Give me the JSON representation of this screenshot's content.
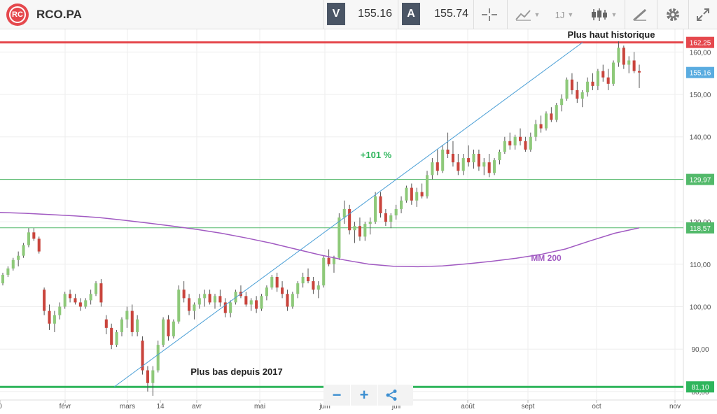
{
  "header": {
    "logo_text": "RC",
    "symbol": "RCO.PA",
    "sell_label": "V",
    "sell_value": "155.16",
    "buy_label": "A",
    "buy_value": "155.74",
    "interval_label": "1J",
    "icons": [
      "crosshair-icon",
      "indicator-icon",
      "candlestick-icon",
      "drawing-tools-icon",
      "gear-icon",
      "fullscreen-icon"
    ]
  },
  "colors": {
    "bull": "#8ec97a",
    "bear": "#c9443c",
    "trend": "#4a9fd6",
    "ma": "#a15ac2",
    "support": "#2fb55c",
    "hline_thin": "#52b96a",
    "ath": "#e5484d",
    "price_tag": "#5aace0"
  },
  "chart_data": {
    "type": "candlestick",
    "y_ticks": [
      "80,00",
      "90,00",
      "100,00",
      "110,00",
      "120,00",
      "130,00",
      "140,00",
      "150,00",
      "160,00"
    ],
    "x_ticks": [
      "0",
      "févr",
      "mars",
      "14",
      "avr",
      "mai",
      "juin",
      "juil",
      "août",
      "sept",
      "oct",
      "nov"
    ],
    "y_range": [
      78.5,
      164.5
    ],
    "grid": true,
    "levels": [
      {
        "name": "ath",
        "value": 162.25,
        "label": "162,25"
      },
      {
        "name": "last",
        "value": 155.16,
        "label": "155,16"
      },
      {
        "name": "resistance",
        "value": 129.97,
        "label": "129,97"
      },
      {
        "name": "ma-cross",
        "value": 118.57,
        "label": "118,57"
      },
      {
        "name": "support",
        "value": 81.1,
        "label": "81,10"
      }
    ],
    "annotations": {
      "ath": "Plus haut historique",
      "low": "Plus bas depuis 2017",
      "gain": "+101 %",
      "ma": "MM 200"
    },
    "ma200": [
      [
        0,
        122.2
      ],
      [
        1,
        122
      ],
      [
        2,
        121.7
      ],
      [
        3,
        121.4
      ],
      [
        4,
        121
      ],
      [
        5,
        120.4
      ],
      [
        6,
        119.7
      ],
      [
        7,
        119
      ],
      [
        8,
        118.2
      ],
      [
        9,
        117.3
      ],
      [
        10,
        116.2
      ],
      [
        11,
        115
      ],
      [
        12,
        113.6
      ],
      [
        13,
        112.2
      ],
      [
        14,
        111
      ],
      [
        15,
        110
      ],
      [
        16,
        109.5
      ],
      [
        17,
        109.4
      ],
      [
        18,
        109.6
      ],
      [
        19,
        110.1
      ],
      [
        20,
        110.7
      ],
      [
        21,
        111.4
      ],
      [
        22,
        112.3
      ],
      [
        23,
        113.6
      ],
      [
        24,
        115.5
      ],
      [
        25,
        117.3
      ],
      [
        26,
        118.57
      ]
    ],
    "trendline": [
      [
        2,
        81.1
      ],
      [
        22.5,
        162.25
      ]
    ],
    "candles": [
      [
        105.5,
        108,
        105,
        107.5
      ],
      [
        107.5,
        109.5,
        107,
        109
      ],
      [
        109,
        111.5,
        108.5,
        111
      ],
      [
        111,
        113,
        109.5,
        112
      ],
      [
        112,
        115,
        111.5,
        114.5
      ],
      [
        114.5,
        118.5,
        114,
        117.5
      ],
      [
        117.5,
        118.5,
        115.5,
        116
      ],
      [
        116,
        116.5,
        112.5,
        113
      ],
      [
        104,
        104.5,
        98,
        99
      ],
      [
        99,
        100.5,
        94.5,
        96
      ],
      [
        96,
        99,
        94,
        98
      ],
      [
        98,
        101,
        97,
        100
      ],
      [
        100,
        103.5,
        99.5,
        103
      ],
      [
        103,
        104,
        101,
        102
      ],
      [
        102,
        103,
        100.5,
        101
      ],
      [
        101,
        102,
        99,
        100
      ],
      [
        100,
        102,
        99.5,
        101.5
      ],
      [
        101.5,
        104,
        100.5,
        103
      ],
      [
        103,
        106,
        102.5,
        105.5
      ],
      [
        105.5,
        106.5,
        100,
        101
      ],
      [
        97,
        98,
        93.5,
        95
      ],
      [
        95,
        96,
        90,
        91
      ],
      [
        91,
        94.5,
        90.5,
        94
      ],
      [
        94,
        97.5,
        93,
        97
      ],
      [
        97,
        100,
        95,
        99
      ],
      [
        99,
        100.5,
        93,
        94
      ],
      [
        94,
        98,
        93,
        97
      ],
      [
        92,
        93,
        84,
        85
      ],
      [
        85,
        86,
        80,
        82
      ],
      [
        82,
        86,
        79,
        85
      ],
      [
        85,
        92,
        84.5,
        91
      ],
      [
        91,
        97.5,
        90.5,
        97
      ],
      [
        97,
        98,
        92,
        93
      ],
      [
        93,
        97,
        92.5,
        96.5
      ],
      [
        96.5,
        105,
        96,
        104
      ],
      [
        104,
        106,
        101,
        102
      ],
      [
        102,
        103,
        98,
        99
      ],
      [
        99,
        101,
        97,
        100.5
      ],
      [
        100.5,
        103,
        99.5,
        102
      ],
      [
        102,
        104,
        100,
        103
      ],
      [
        103,
        104,
        100.5,
        101
      ],
      [
        101,
        103,
        99.5,
        102.5
      ],
      [
        102.5,
        104,
        100,
        101
      ],
      [
        101,
        102,
        97.5,
        98.5
      ],
      [
        98.5,
        101.5,
        97.5,
        101
      ],
      [
        101,
        104,
        100.5,
        103.5
      ],
      [
        103.5,
        105,
        102,
        102.5
      ],
      [
        102.5,
        103.5,
        100,
        100.5
      ],
      [
        100.5,
        102,
        99,
        101.5
      ],
      [
        101.5,
        102.5,
        98.5,
        99.5
      ],
      [
        99.5,
        103,
        99,
        102.5
      ],
      [
        102.5,
        105,
        101.5,
        104.5
      ],
      [
        104.5,
        107.5,
        104,
        107
      ],
      [
        107,
        108,
        103.5,
        104.5
      ],
      [
        104.5,
        106,
        102,
        103
      ],
      [
        103,
        104,
        99,
        100
      ],
      [
        100,
        103.5,
        99.5,
        103
      ],
      [
        103,
        106,
        102,
        105.5
      ],
      [
        105.5,
        108,
        104.5,
        107
      ],
      [
        107,
        109,
        105.5,
        106
      ],
      [
        106,
        107,
        103,
        104
      ],
      [
        104,
        106,
        102,
        105
      ],
      [
        105,
        112,
        104.5,
        111.5
      ],
      [
        111.5,
        113.5,
        109.5,
        110
      ],
      [
        110,
        112,
        108,
        111.5
      ],
      [
        111.5,
        122,
        111,
        121
      ],
      [
        121,
        125,
        119.5,
        123
      ],
      [
        123,
        124,
        117,
        118
      ],
      [
        118,
        120,
        115,
        119
      ],
      [
        119,
        121,
        115.5,
        116.5
      ],
      [
        116.5,
        120,
        115.5,
        119.5
      ],
      [
        119.5,
        121,
        117,
        120
      ],
      [
        120,
        127,
        119.5,
        126
      ],
      [
        126,
        127,
        121,
        122
      ],
      [
        122,
        123,
        119,
        120
      ],
      [
        120,
        122,
        118.5,
        121.5
      ],
      [
        121.5,
        124,
        120.5,
        123
      ],
      [
        123,
        126,
        122,
        125
      ],
      [
        125,
        128.5,
        124.5,
        128
      ],
      [
        128,
        129,
        124,
        125
      ],
      [
        125,
        128,
        123.5,
        127
      ],
      [
        127,
        129,
        125.5,
        126
      ],
      [
        126,
        132,
        125.5,
        131
      ],
      [
        131,
        135,
        130,
        134
      ],
      [
        134,
        137,
        131,
        132
      ],
      [
        132,
        138,
        131.5,
        137
      ],
      [
        137,
        141,
        135,
        136
      ],
      [
        136,
        139,
        133,
        134
      ],
      [
        134,
        136,
        131,
        132
      ],
      [
        132,
        136,
        131,
        135
      ],
      [
        135,
        138,
        133,
        134
      ],
      [
        134,
        137,
        132.5,
        136
      ],
      [
        136,
        137,
        132,
        133
      ],
      [
        133,
        135,
        131,
        134
      ],
      [
        134,
        136,
        130.5,
        131.5
      ],
      [
        131.5,
        135,
        131,
        134.5
      ],
      [
        134.5,
        137,
        133.5,
        136.5
      ],
      [
        136.5,
        140,
        136,
        139
      ],
      [
        139,
        141,
        137,
        138
      ],
      [
        138,
        140.5,
        137,
        140
      ],
      [
        140,
        142,
        138,
        139
      ],
      [
        139,
        140,
        136.5,
        137
      ],
      [
        137,
        141,
        136.5,
        140
      ],
      [
        140,
        144,
        139,
        143
      ],
      [
        143,
        145,
        141,
        142
      ],
      [
        142,
        146,
        141.5,
        145.5
      ],
      [
        145.5,
        147,
        143.5,
        144
      ],
      [
        144,
        148,
        143.5,
        147.5
      ],
      [
        147.5,
        150,
        146,
        149
      ],
      [
        149,
        154,
        148.5,
        153.5
      ],
      [
        153.5,
        155,
        150,
        151
      ],
      [
        151,
        153,
        148,
        149
      ],
      [
        149,
        151,
        147,
        150.5
      ],
      [
        150.5,
        154,
        149.5,
        153
      ],
      [
        153,
        155,
        151,
        152
      ],
      [
        152,
        156,
        151,
        155.5
      ],
      [
        155.5,
        157,
        153,
        154
      ],
      [
        154,
        156,
        151,
        152.5
      ],
      [
        152.5,
        158,
        152,
        157.5
      ],
      [
        157.5,
        162.5,
        156.5,
        161
      ],
      [
        161,
        161.5,
        156,
        157
      ],
      [
        157,
        159,
        155,
        158
      ],
      [
        158,
        160,
        155,
        155.5
      ],
      [
        155.5,
        157,
        151.5,
        155.16
      ]
    ]
  }
}
